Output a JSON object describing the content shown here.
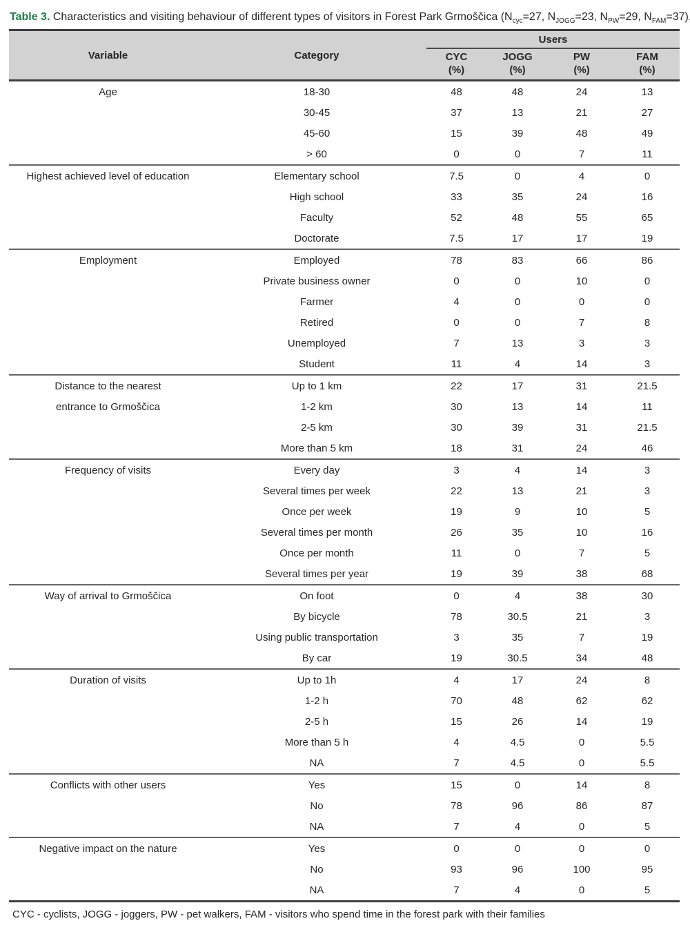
{
  "colors": {
    "accent_green": "#1d7c45",
    "text": "#262626",
    "header_bg": "#d2d2d2",
    "rule_dark": "#3e3e3e",
    "rule_gray": "#666666"
  },
  "title": {
    "label": "Table 3.",
    "segments": [
      {
        "t": "Characteristics and visiting behaviour of different types of visitors in Forest Park Grmoščica (N"
      },
      {
        "t": "cyc",
        "sub": true
      },
      {
        "t": "=27, N"
      },
      {
        "t": "JOGG",
        "sub": true
      },
      {
        "t": "=23, N"
      },
      {
        "t": "PW",
        "sub": true
      },
      {
        "t": "=29, N"
      },
      {
        "t": "FAM",
        "sub": true
      },
      {
        "t": "=37)."
      }
    ]
  },
  "table": {
    "header": {
      "variable": "Variable",
      "category": "Category",
      "users_group": "Users",
      "user_columns": [
        {
          "name": "CYC",
          "unit": "(%)"
        },
        {
          "name": "JOGG",
          "unit": "(%)"
        },
        {
          "name": "PW",
          "unit": "(%)"
        },
        {
          "name": "FAM",
          "unit": "(%)"
        }
      ]
    },
    "sections": [
      {
        "variable": [
          "Age"
        ],
        "rows": [
          {
            "category": "18-30",
            "values": [
              "48",
              "48",
              "24",
              "13"
            ]
          },
          {
            "category": "30-45",
            "values": [
              "37",
              "13",
              "21",
              "27"
            ]
          },
          {
            "category": "45-60",
            "values": [
              "15",
              "39",
              "48",
              "49"
            ]
          },
          {
            "category": "> 60",
            "values": [
              "0",
              "0",
              "7",
              "11"
            ]
          }
        ]
      },
      {
        "variable": [
          "Highest achieved level of education"
        ],
        "rows": [
          {
            "category": "Elementary school",
            "values": [
              "7.5",
              "0",
              "4",
              "0"
            ]
          },
          {
            "category": "High school",
            "values": [
              "33",
              "35",
              "24",
              "16"
            ]
          },
          {
            "category": "Faculty",
            "values": [
              "52",
              "48",
              "55",
              "65"
            ]
          },
          {
            "category": "Doctorate",
            "values": [
              "7.5",
              "17",
              "17",
              "19"
            ]
          }
        ]
      },
      {
        "variable": [
          "Employment"
        ],
        "rows": [
          {
            "category": "Employed",
            "values": [
              "78",
              "83",
              "66",
              "86"
            ]
          },
          {
            "category": "Private business owner",
            "values": [
              "0",
              "0",
              "10",
              "0"
            ]
          },
          {
            "category": "Farmer",
            "values": [
              "4",
              "0",
              "0",
              "0"
            ]
          },
          {
            "category": "Retired",
            "values": [
              "0",
              "0",
              "7",
              "8"
            ]
          },
          {
            "category": "Unemployed",
            "values": [
              "7",
              "13",
              "3",
              "3"
            ]
          },
          {
            "category": "Student",
            "values": [
              "11",
              "4",
              "14",
              "3"
            ]
          }
        ]
      },
      {
        "variable": [
          "Distance to the nearest",
          "entrance to Grmoščica"
        ],
        "rows": [
          {
            "category": "Up to 1 km",
            "values": [
              "22",
              "17",
              "31",
              "21.5"
            ]
          },
          {
            "category": "1-2 km",
            "values": [
              "30",
              "13",
              "14",
              "11"
            ]
          },
          {
            "category": "2-5 km",
            "values": [
              "30",
              "39",
              "31",
              "21.5"
            ]
          },
          {
            "category": "More than 5 km",
            "values": [
              "18",
              "31",
              "24",
              "46"
            ]
          }
        ]
      },
      {
        "variable": [
          "Frequency of visits"
        ],
        "rows": [
          {
            "category": "Every day",
            "values": [
              "3",
              "4",
              "14",
              "3"
            ]
          },
          {
            "category": "Several times per week",
            "values": [
              "22",
              "13",
              "21",
              "3"
            ]
          },
          {
            "category": "Once per week",
            "values": [
              "19",
              "9",
              "10",
              "5"
            ]
          },
          {
            "category": "Several times per month",
            "values": [
              "26",
              "35",
              "10",
              "16"
            ]
          },
          {
            "category": "Once per month",
            "values": [
              "11",
              "0",
              "7",
              "5"
            ]
          },
          {
            "category": "Several times per year",
            "values": [
              "19",
              "39",
              "38",
              "68"
            ]
          }
        ]
      },
      {
        "variable": [
          "Way of arrival to Grmoščica"
        ],
        "rows": [
          {
            "category": "On foot",
            "values": [
              "0",
              "4",
              "38",
              "30"
            ]
          },
          {
            "category": "By bicycle",
            "values": [
              "78",
              "30.5",
              "21",
              "3"
            ]
          },
          {
            "category": "Using public transportation",
            "values": [
              "3",
              "35",
              "7",
              "19"
            ]
          },
          {
            "category": "By car",
            "values": [
              "19",
              "30.5",
              "34",
              "48"
            ]
          }
        ]
      },
      {
        "variable": [
          "Duration of visits"
        ],
        "rows": [
          {
            "category": "Up to 1h",
            "values": [
              "4",
              "17",
              "24",
              "8"
            ]
          },
          {
            "category": "1-2 h",
            "values": [
              "70",
              "48",
              "62",
              "62"
            ]
          },
          {
            "category": "2-5 h",
            "values": [
              "15",
              "26",
              "14",
              "19"
            ]
          },
          {
            "category": "More than 5 h",
            "values": [
              "4",
              "4.5",
              "0",
              "5.5"
            ]
          },
          {
            "category": "NA",
            "values": [
              "7",
              "4.5",
              "0",
              "5.5"
            ]
          }
        ]
      },
      {
        "variable": [
          "Conflicts with other users"
        ],
        "rows": [
          {
            "category": "Yes",
            "values": [
              "15",
              "0",
              "14",
              "8"
            ]
          },
          {
            "category": "No",
            "values": [
              "78",
              "96",
              "86",
              "87"
            ]
          },
          {
            "category": "NA",
            "values": [
              "7",
              "4",
              "0",
              "5"
            ]
          }
        ]
      },
      {
        "variable": [
          "Negative impact on the nature"
        ],
        "rows": [
          {
            "category": "Yes",
            "values": [
              "0",
              "0",
              "0",
              "0"
            ]
          },
          {
            "category": "No",
            "values": [
              "93",
              "96",
              "100",
              "95"
            ]
          },
          {
            "category": "NA",
            "values": [
              "7",
              "4",
              "0",
              "5"
            ]
          }
        ]
      }
    ],
    "footnote": "CYC - cyclists, JOGG - joggers, PW - pet walkers, FAM - visitors who spend time in the forest park with their families"
  }
}
